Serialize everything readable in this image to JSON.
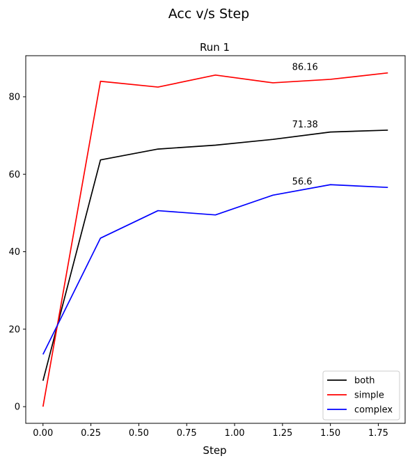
{
  "figure": {
    "suptitle": "Acc v/s Step"
  },
  "chart_data": {
    "type": "line",
    "title": "Run 1",
    "xlabel": "Step",
    "ylabel": "",
    "xlim": [
      -0.09,
      1.89
    ],
    "ylim": [
      -4.3,
      90.6
    ],
    "xticks": [
      0.0,
      0.25,
      0.5,
      0.75,
      1.0,
      1.25,
      1.5,
      1.75
    ],
    "xtick_labels": [
      "0.00",
      "0.25",
      "0.50",
      "0.75",
      "1.00",
      "1.25",
      "1.50",
      "1.75"
    ],
    "yticks": [
      0,
      20,
      40,
      60,
      80
    ],
    "ytick_labels": [
      "0",
      "20",
      "40",
      "60",
      "80"
    ],
    "grid": false,
    "legend_position": "bottom-right",
    "x": [
      0.0,
      0.3,
      0.6,
      0.9,
      1.2,
      1.5,
      1.8
    ],
    "series": [
      {
        "name": "both",
        "color": "#000000",
        "values": [
          6.7,
          63.7,
          66.5,
          67.5,
          69.0,
          70.9,
          71.38
        ]
      },
      {
        "name": "simple",
        "color": "#ff0000",
        "values": [
          0.0,
          84.0,
          82.5,
          85.6,
          83.6,
          84.5,
          86.16
        ]
      },
      {
        "name": "complex",
        "color": "#0000ff",
        "values": [
          13.5,
          43.5,
          50.6,
          49.5,
          54.6,
          57.3,
          56.6
        ]
      }
    ],
    "annotations": [
      {
        "text": "86.16",
        "x": 1.3,
        "y": 86.16
      },
      {
        "text": "71.38",
        "x": 1.3,
        "y": 71.38
      },
      {
        "text": "56.6",
        "x": 1.3,
        "y": 56.6
      }
    ]
  }
}
